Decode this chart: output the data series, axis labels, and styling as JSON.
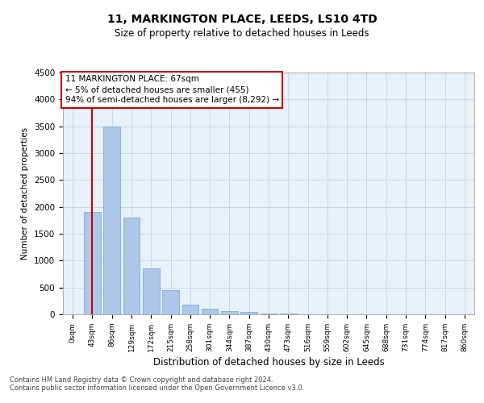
{
  "title1": "11, MARKINGTON PLACE, LEEDS, LS10 4TD",
  "title2": "Size of property relative to detached houses in Leeds",
  "xlabel": "Distribution of detached houses by size in Leeds",
  "ylabel": "Number of detached properties",
  "bar_labels": [
    "0sqm",
    "43sqm",
    "86sqm",
    "129sqm",
    "172sqm",
    "215sqm",
    "258sqm",
    "301sqm",
    "344sqm",
    "387sqm",
    "430sqm",
    "473sqm",
    "516sqm",
    "559sqm",
    "602sqm",
    "645sqm",
    "688sqm",
    "731sqm",
    "774sqm",
    "817sqm",
    "860sqm"
  ],
  "bar_values": [
    0,
    1900,
    3500,
    1800,
    850,
    450,
    175,
    100,
    60,
    40,
    20,
    10,
    0,
    0,
    0,
    0,
    0,
    0,
    0,
    0,
    0
  ],
  "bar_color": "#aec6e8",
  "bar_edgecolor": "#7aadd4",
  "vline_x": 1.0,
  "vline_color": "#cc0000",
  "annotation_text": "11 MARKINGTON PLACE: 67sqm\n← 5% of detached houses are smaller (455)\n94% of semi-detached houses are larger (8,292) →",
  "annotation_box_edgecolor": "#cc0000",
  "annotation_fontsize": 7.5,
  "ylim": [
    0,
    4500
  ],
  "yticks": [
    0,
    500,
    1000,
    1500,
    2000,
    2500,
    3000,
    3500,
    4000,
    4500
  ],
  "grid_color": "#c8d8e8",
  "bg_color": "#e8f0f8",
  "footer1": "Contains HM Land Registry data © Crown copyright and database right 2024.",
  "footer2": "Contains public sector information licensed under the Open Government Licence v3.0."
}
